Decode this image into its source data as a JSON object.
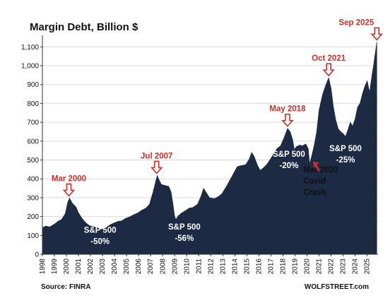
{
  "chart_data": {
    "type": "area",
    "title": "Margin Debt, Billion $",
    "ylim": [
      0,
      1150
    ],
    "yticks": [
      0,
      100,
      200,
      300,
      400,
      500,
      600,
      700,
      800,
      900,
      1000,
      1100
    ],
    "ytick_labels": [
      "0",
      "100",
      "200",
      "300",
      "400",
      "500",
      "600",
      "700",
      "800",
      "900",
      "1,000",
      "1,100"
    ],
    "xlim": [
      1998.0,
      2025.9
    ],
    "xticks": [
      "1998",
      "1999",
      "2000",
      "2001",
      "2002",
      "2003",
      "2004",
      "2005",
      "2006",
      "2007",
      "2008",
      "2009",
      "2010",
      "2011",
      "2012",
      "2013",
      "2014",
      "2015",
      "2016",
      "2017",
      "2018",
      "2019",
      "2020",
      "2021",
      "2022",
      "2023",
      "2024",
      "2025"
    ],
    "grid": true,
    "series": [
      {
        "color": "#1c2a44",
        "points": [
          [
            1998.0,
            140
          ],
          [
            1998.3,
            150
          ],
          [
            1998.6,
            145
          ],
          [
            1998.8,
            152
          ],
          [
            1999.0,
            160
          ],
          [
            1999.3,
            175
          ],
          [
            1999.6,
            185
          ],
          [
            1999.9,
            215
          ],
          [
            2000.1,
            275
          ],
          [
            2000.25,
            298
          ],
          [
            2000.5,
            270
          ],
          [
            2000.8,
            250
          ],
          [
            2001.0,
            220
          ],
          [
            2001.3,
            190
          ],
          [
            2001.6,
            168
          ],
          [
            2001.9,
            152
          ],
          [
            2002.3,
            145
          ],
          [
            2002.6,
            140
          ],
          [
            2002.9,
            132
          ],
          [
            2003.2,
            138
          ],
          [
            2003.6,
            155
          ],
          [
            2003.9,
            165
          ],
          [
            2004.3,
            175
          ],
          [
            2004.6,
            178
          ],
          [
            2004.9,
            190
          ],
          [
            2005.3,
            200
          ],
          [
            2005.6,
            210
          ],
          [
            2005.9,
            218
          ],
          [
            2006.3,
            235
          ],
          [
            2006.6,
            245
          ],
          [
            2006.9,
            265
          ],
          [
            2007.2,
            330
          ],
          [
            2007.45,
            395
          ],
          [
            2007.55,
            418
          ],
          [
            2007.7,
            395
          ],
          [
            2007.9,
            370
          ],
          [
            2008.2,
            365
          ],
          [
            2008.5,
            360
          ],
          [
            2008.7,
            330
          ],
          [
            2008.85,
            270
          ],
          [
            2009.0,
            200
          ],
          [
            2009.1,
            185
          ],
          [
            2009.3,
            205
          ],
          [
            2009.6,
            220
          ],
          [
            2009.9,
            232
          ],
          [
            2010.2,
            245
          ],
          [
            2010.5,
            248
          ],
          [
            2010.9,
            265
          ],
          [
            2011.2,
            310
          ],
          [
            2011.4,
            350
          ],
          [
            2011.6,
            330
          ],
          [
            2011.9,
            300
          ],
          [
            2012.3,
            295
          ],
          [
            2012.6,
            305
          ],
          [
            2012.9,
            320
          ],
          [
            2013.3,
            360
          ],
          [
            2013.6,
            395
          ],
          [
            2013.9,
            430
          ],
          [
            2014.2,
            465
          ],
          [
            2014.5,
            470
          ],
          [
            2014.9,
            475
          ],
          [
            2015.2,
            505
          ],
          [
            2015.4,
            540
          ],
          [
            2015.6,
            520
          ],
          [
            2015.9,
            470
          ],
          [
            2016.1,
            445
          ],
          [
            2016.4,
            460
          ],
          [
            2016.7,
            480
          ],
          [
            2016.9,
            500
          ],
          [
            2017.2,
            530
          ],
          [
            2017.5,
            560
          ],
          [
            2017.8,
            575
          ],
          [
            2018.1,
            620
          ],
          [
            2018.38,
            668
          ],
          [
            2018.6,
            650
          ],
          [
            2018.8,
            610
          ],
          [
            2018.95,
            555
          ],
          [
            2019.1,
            570
          ],
          [
            2019.4,
            580
          ],
          [
            2019.6,
            575
          ],
          [
            2019.9,
            585
          ],
          [
            2020.1,
            560
          ],
          [
            2020.22,
            480
          ],
          [
            2020.4,
            525
          ],
          [
            2020.6,
            580
          ],
          [
            2020.8,
            650
          ],
          [
            2021.0,
            765
          ],
          [
            2021.3,
            850
          ],
          [
            2021.6,
            905
          ],
          [
            2021.8,
            936
          ],
          [
            2022.0,
            880
          ],
          [
            2022.2,
            780
          ],
          [
            2022.4,
            710
          ],
          [
            2022.6,
            665
          ],
          [
            2022.8,
            650
          ],
          [
            2023.0,
            640
          ],
          [
            2023.2,
            625
          ],
          [
            2023.4,
            660
          ],
          [
            2023.6,
            700
          ],
          [
            2023.8,
            680
          ],
          [
            2024.0,
            720
          ],
          [
            2024.2,
            780
          ],
          [
            2024.4,
            800
          ],
          [
            2024.6,
            850
          ],
          [
            2024.8,
            890
          ],
          [
            2025.0,
            920
          ],
          [
            2025.2,
            860
          ],
          [
            2025.4,
            950
          ],
          [
            2025.55,
            1010
          ],
          [
            2025.7,
            1080
          ],
          [
            2025.8,
            1126
          ]
        ]
      }
    ],
    "annotations": [
      {
        "text": "Mar 2000",
        "x": 2000.2,
        "y": 298,
        "type": "peak"
      },
      {
        "text": "Jul 2007",
        "x": 2007.5,
        "y": 418,
        "type": "peak"
      },
      {
        "text": "May 2018",
        "x": 2018.38,
        "y": 668,
        "type": "peak"
      },
      {
        "text": "Oct 2021",
        "x": 2021.8,
        "y": 936,
        "type": "peak"
      },
      {
        "text": "Sep 2025",
        "x": 2025.8,
        "y": 1126,
        "type": "peak"
      },
      {
        "text": [
          "S&P 500",
          "-50%"
        ],
        "x": 2002.8,
        "y": 115,
        "type": "white"
      },
      {
        "text": [
          "S&P 500",
          "-56%"
        ],
        "x": 2009.8,
        "y": 132,
        "type": "white"
      },
      {
        "text": [
          "S&P 500",
          "-20%"
        ],
        "x": 2018.5,
        "y": 517,
        "type": "white"
      },
      {
        "text": [
          "S&P 500",
          "-25%"
        ],
        "x": 2023.2,
        "y": 547,
        "type": "white"
      },
      {
        "text": [
          "Mar 2020",
          "Covid",
          "Crash"
        ],
        "x": 2020.75,
        "y": 435,
        "type": "dark",
        "arrow_to": [
          2020.25,
          500
        ]
      }
    ],
    "colors": {
      "fill": "#1c2a44",
      "annotation": "#c8302a"
    }
  },
  "footer": {
    "source": "Source: FINRA",
    "brand": "WOLFSTREET.com"
  }
}
